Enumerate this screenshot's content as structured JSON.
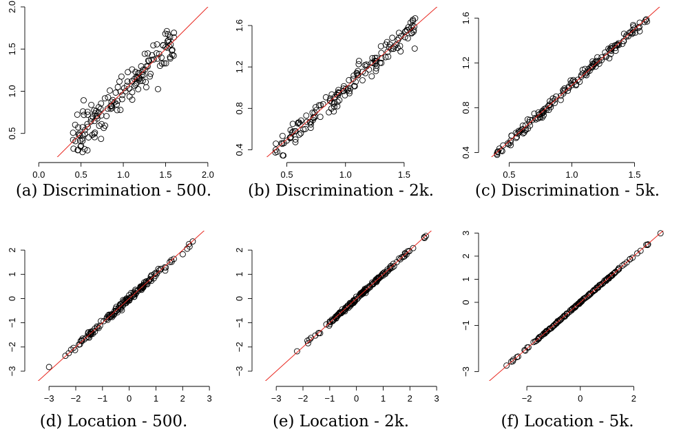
{
  "chart_data": [
    {
      "type": "scatter",
      "caption": "(a) Discrimination - 500.",
      "xlim": [
        -0.1,
        2.05
      ],
      "ylim": [
        0.22,
        2.0
      ],
      "xticks": [
        0.0,
        0.5,
        1.0,
        1.5,
        2.0
      ],
      "xtick_labels": [
        "0.0",
        "0.5",
        "1.0",
        "1.5",
        "2.0"
      ],
      "yticks": [
        0.5,
        1.0,
        1.5,
        2.0
      ],
      "ytick_labels": [
        "0.5",
        "1.0",
        "1.5",
        "2.0"
      ],
      "reference_line": "y = x",
      "n_points": 160,
      "x_range": [
        0.4,
        1.6
      ],
      "scatter_sd": 0.11
    },
    {
      "type": "scatter",
      "caption": "(b) Discrimination - 2k.",
      "xlim": [
        0.25,
        1.8
      ],
      "ylim": [
        0.33,
        1.78
      ],
      "xticks": [
        0.5,
        1.0,
        1.5
      ],
      "xtick_labels": [
        "0.5",
        "1.0",
        "1.5"
      ],
      "yticks": [
        0.4,
        0.8,
        1.2,
        1.6
      ],
      "ytick_labels": [
        "0.4",
        "0.8",
        "1.2",
        "1.6"
      ],
      "reference_line": "y = x",
      "n_points": 160,
      "x_range": [
        0.4,
        1.6
      ],
      "scatter_sd": 0.06
    },
    {
      "type": "scatter",
      "caption": "(c) Discrimination - 5k.",
      "xlim": [
        0.3,
        1.75
      ],
      "ylim": [
        0.36,
        1.7
      ],
      "xticks": [
        0.5,
        1.0,
        1.5
      ],
      "xtick_labels": [
        "0.5",
        "1.0",
        "1.5"
      ],
      "yticks": [
        0.4,
        0.8,
        1.2,
        1.6
      ],
      "ytick_labels": [
        "0.4",
        "0.8",
        "1.2",
        "1.6"
      ],
      "reference_line": "y = x",
      "n_points": 160,
      "x_range": [
        0.4,
        1.6
      ],
      "scatter_sd": 0.025
    },
    {
      "type": "scatter",
      "caption": "(d) Location - 500.",
      "xlim": [
        -3.7,
        3.1
      ],
      "ylim": [
        -3.4,
        2.8
      ],
      "xticks": [
        -3,
        -2,
        -1,
        0,
        1,
        2,
        3
      ],
      "xtick_labels": [
        "−3",
        "−2",
        "−1",
        "0",
        "1",
        "2",
        "3"
      ],
      "yticks": [
        -3,
        -2,
        -1,
        0,
        1,
        2
      ],
      "ytick_labels": [
        "−3",
        "−2",
        "−1",
        "0",
        "1",
        "2"
      ],
      "reference_line": "y = x",
      "n_points": 160,
      "x_range": [
        -3.0,
        2.7
      ],
      "scatter_sd": 0.08
    },
    {
      "type": "scatter",
      "caption": "(e) Location - 2k.",
      "xlim": [
        -3.7,
        3.1
      ],
      "ylim": [
        -3.4,
        2.8
      ],
      "xticks": [
        -3,
        -2,
        -1,
        0,
        1,
        2,
        3
      ],
      "xtick_labels": [
        "−3",
        "−2",
        "−1",
        "0",
        "1",
        "2",
        "3"
      ],
      "yticks": [
        -3,
        -2,
        -1,
        0,
        1,
        2
      ],
      "ytick_labels": [
        "−3",
        "−2",
        "−1",
        "0",
        "1",
        "2"
      ],
      "reference_line": "y = x",
      "n_points": 160,
      "x_range": [
        -2.3,
        2.6
      ],
      "scatter_sd": 0.04
    },
    {
      "type": "scatter",
      "caption": "(f) Location - 5k.",
      "xlim": [
        -3.6,
        3.2
      ],
      "ylim": [
        -3.4,
        3.1
      ],
      "xticks": [
        -2,
        0,
        2
      ],
      "xtick_labels": [
        "−2",
        "0",
        "2"
      ],
      "yticks": [
        -3,
        -1,
        0,
        1,
        2,
        3
      ],
      "ytick_labels": [
        "−3",
        "−1",
        "0",
        "1",
        "2",
        "3"
      ],
      "reference_line": "y = x",
      "n_points": 160,
      "x_range": [
        -3.2,
        3.0
      ],
      "scatter_sd": 0.02
    }
  ]
}
